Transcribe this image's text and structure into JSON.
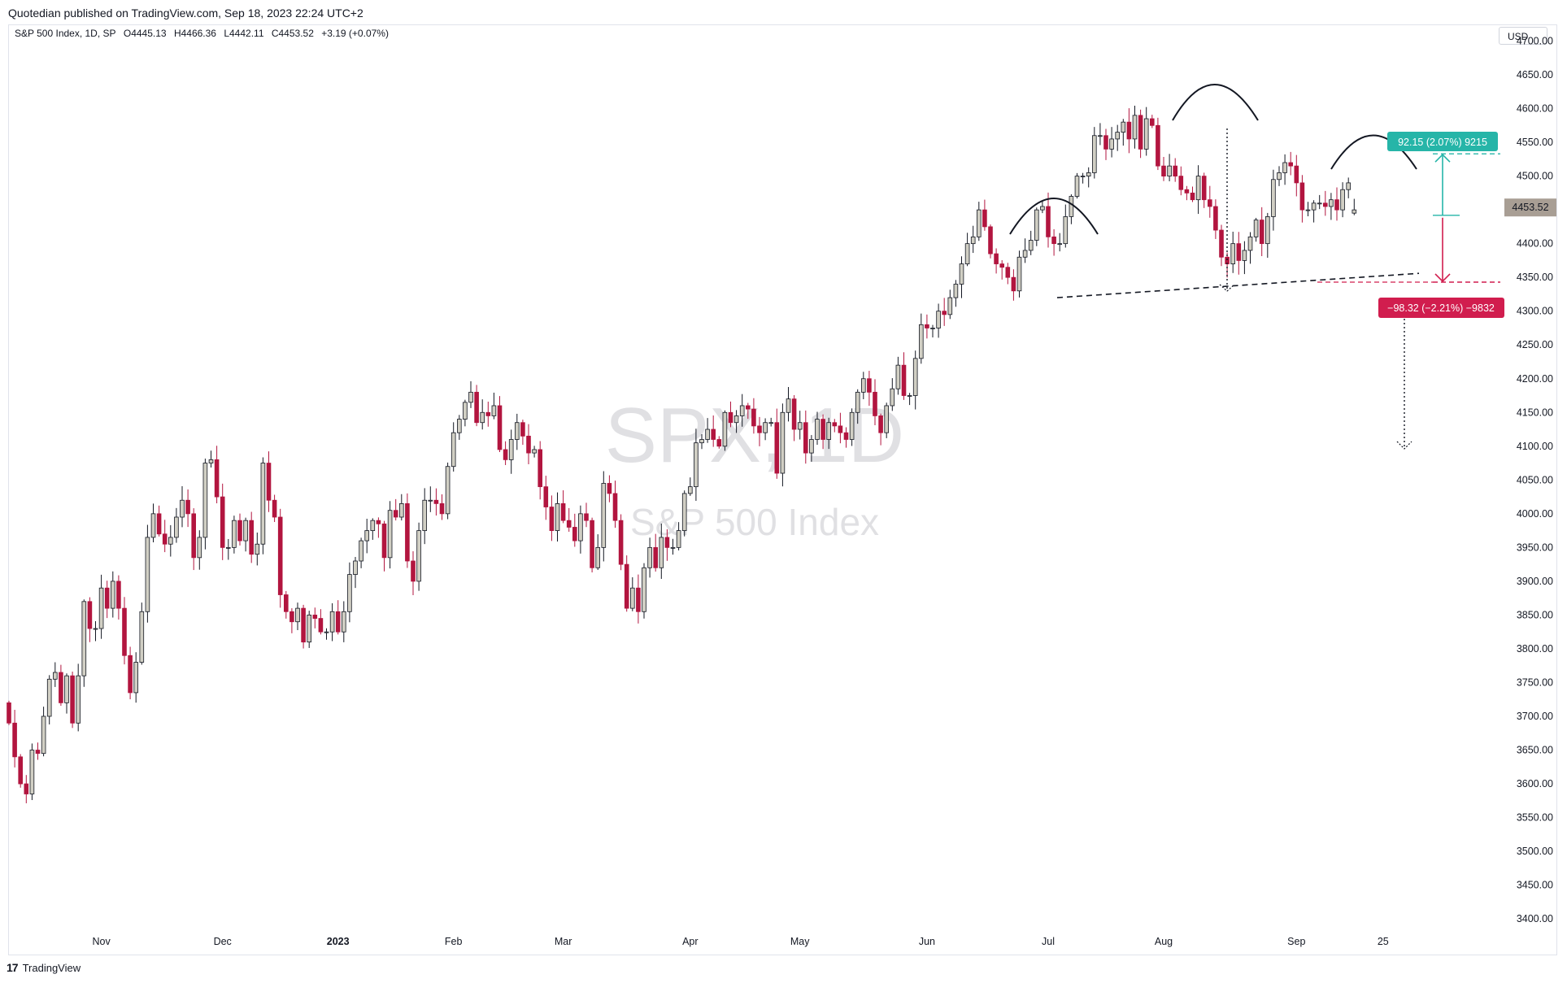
{
  "header": {
    "publisher": "Quotedian published on TradingView.com, Sep 18, 2023 22:24 UTC+2"
  },
  "legend": {
    "symbol": "S&P 500 Index, 1D, SP",
    "open": "O4445.13",
    "high": "H4466.36",
    "low": "L4442.11",
    "close": "C4453.52",
    "change": "+3.19 (+0.07%)"
  },
  "currency": "USD",
  "footer": {
    "brand": "TradingView",
    "mark": "17"
  },
  "watermark": {
    "symbol": "SPX, 1D",
    "name": "S&P 500 Index"
  },
  "colors": {
    "up": "#d1cfc4",
    "down": "#b2153f",
    "up_border": "#131722",
    "target_up": "#26b5a8",
    "target_down": "#d11d4e",
    "price_tag": "#a89e94"
  },
  "annotations": {
    "up_measure_label": "92.15 (2.07%) 9215",
    "down_measure_label": "−98.32 (−2.21%) −9832",
    "last_price_label": "4453.52"
  },
  "chart_data": {
    "type": "candlestick",
    "title": "S&P 500 Index, 1D, SP",
    "ylim": [
      3375,
      4725
    ],
    "y_ticks": [
      "4700.00",
      "4650.00",
      "4600.00",
      "4550.00",
      "4500.00",
      "4450.00",
      "4400.00",
      "4350.00",
      "4300.00",
      "4250.00",
      "4200.00",
      "4150.00",
      "4100.00",
      "4050.00",
      "4000.00",
      "3950.00",
      "3900.00",
      "3850.00",
      "3800.00",
      "3750.00",
      "3700.00",
      "3650.00",
      "3600.00",
      "3550.00",
      "3500.00",
      "3450.00",
      "3400.00"
    ],
    "x_labels": [
      {
        "label": "Nov",
        "bar": 16,
        "bold": false
      },
      {
        "label": "Dec",
        "bar": 37,
        "bold": false
      },
      {
        "label": "2023",
        "bar": 57,
        "bold": true
      },
      {
        "label": "Feb",
        "bar": 77,
        "bold": false
      },
      {
        "label": "Mar",
        "bar": 96,
        "bold": false
      },
      {
        "label": "Apr",
        "bar": 118,
        "bold": false
      },
      {
        "label": "May",
        "bar": 137,
        "bold": false
      },
      {
        "label": "Jun",
        "bar": 159,
        "bold": false
      },
      {
        "label": "Jul",
        "bar": 180,
        "bold": false
      },
      {
        "label": "Aug",
        "bar": 200,
        "bold": false
      },
      {
        "label": "Sep",
        "bar": 223,
        "bold": false
      },
      {
        "label": "25",
        "bar": 238,
        "bold": false
      }
    ],
    "close": [
      3690,
      3640,
      3600,
      3585,
      3650,
      3645,
      3700,
      3755,
      3765,
      3720,
      3760,
      3690,
      3760,
      3870,
      3830,
      3830,
      3890,
      3860,
      3900,
      3860,
      3790,
      3735,
      3780,
      3855,
      3965,
      4000,
      3970,
      3955,
      3965,
      3995,
      4020,
      4000,
      3935,
      3965,
      4075,
      4080,
      4025,
      3950,
      3950,
      3990,
      3960,
      3990,
      3940,
      3955,
      4075,
      4020,
      3995,
      3880,
      3855,
      3840,
      3860,
      3810,
      3850,
      3845,
      3825,
      3825,
      3855,
      3825,
      3855,
      3910,
      3930,
      3960,
      3975,
      3990,
      3985,
      3935,
      4005,
      3995,
      4015,
      3930,
      3900,
      3975,
      4020,
      4020,
      4015,
      4000,
      4070,
      4120,
      4140,
      4165,
      4180,
      4135,
      4150,
      4145,
      4160,
      4095,
      4080,
      4110,
      4135,
      4115,
      4090,
      4095,
      4040,
      4010,
      3975,
      4015,
      3990,
      3980,
      3960,
      4000,
      3990,
      3920,
      3950,
      4045,
      4030,
      3990,
      3925,
      3860,
      3890,
      3855,
      3920,
      3950,
      3920,
      3965,
      3950,
      3950,
      3975,
      4030,
      4040,
      4105,
      4110,
      4125,
      4110,
      4100,
      4150,
      4135,
      4145,
      4160,
      4155,
      4130,
      4120,
      4135,
      4135,
      4060,
      4150,
      4170,
      4125,
      4135,
      4090,
      4110,
      4140,
      4110,
      4135,
      4130,
      4120,
      4110,
      4150,
      4180,
      4200,
      4180,
      4145,
      4120,
      4160,
      4185,
      4220,
      4175,
      4175,
      4230,
      4280,
      4275,
      4275,
      4300,
      4295,
      4320,
      4340,
      4370,
      4400,
      4410,
      4450,
      4425,
      4385,
      4370,
      4365,
      4350,
      4330,
      4380,
      4390,
      4405,
      4450,
      4455,
      4410,
      4400,
      4400,
      4440,
      4470,
      4500,
      4500,
      4505,
      4560,
      4560,
      4540,
      4555,
      4565,
      4580,
      4555,
      4590,
      4540,
      4585,
      4575,
      4515,
      4500,
      4515,
      4500,
      4480,
      4475,
      4465,
      4500,
      4465,
      4455,
      4420,
      4380,
      4370,
      4400,
      4375,
      4390,
      4410,
      4435,
      4400,
      4440,
      4495,
      4505,
      4520,
      4515,
      4490,
      4450,
      4450,
      4460,
      4460,
      4455,
      4465,
      4450,
      4480,
      4490,
      4450
    ],
    "ohlc_note": "Daily candles Oct 2022 – Sep 18 2023; last bar O4445.13 H4466.36 L4442.11 C4453.52"
  }
}
